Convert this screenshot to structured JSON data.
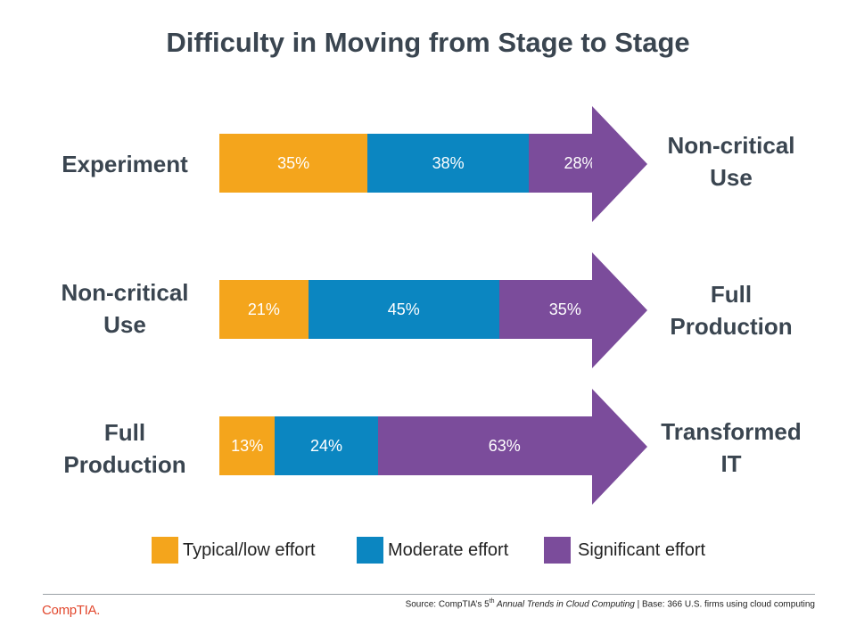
{
  "title": "Difficulty in Moving from Stage to Stage",
  "colors": {
    "low": "#f4a51c",
    "moderate": "#0b86c1",
    "significant": "#7b4c9b",
    "text": "#3a4550",
    "logo": "#e2492f"
  },
  "chart_data": {
    "type": "bar",
    "orientation": "horizontal-stacked",
    "title": "Difficulty in Moving from Stage to Stage",
    "unit": "%",
    "categories": [
      "Experiment",
      "Non-critical Use",
      "Full Production"
    ],
    "targets": [
      "Non-critical Use",
      "Full Production",
      "Transformed IT"
    ],
    "series": [
      {
        "name": "Typical/low effort",
        "values": [
          35,
          21,
          13
        ]
      },
      {
        "name": "Moderate effort",
        "values": [
          38,
          45,
          24
        ]
      },
      {
        "name": "Significant effort",
        "values": [
          28,
          35,
          63
        ]
      }
    ],
    "value_labels": [
      [
        "35%",
        "38%",
        "28%"
      ],
      [
        "21%",
        "45%",
        "35%"
      ],
      [
        "13%",
        "24%",
        "63%"
      ]
    ],
    "legend_position": "bottom"
  },
  "rows": [
    {
      "from_line1": "Experiment",
      "from_line2": "",
      "to_line1": "Non-critical",
      "to_line2": "Use"
    },
    {
      "from_line1": "Non-critical",
      "from_line2": "Use",
      "to_line1": "Full",
      "to_line2": "Production"
    },
    {
      "from_line1": "Full",
      "from_line2": "Production",
      "to_line1": "Transformed",
      "to_line2": "IT"
    }
  ],
  "legend": {
    "low": "Typical/low effort",
    "moderate": "Moderate effort",
    "significant": "Significant effort"
  },
  "footer": {
    "source_prefix": "Source: CompTIA’s 5",
    "source_sup": "th",
    "source_italic": " Annual Trends in Cloud Computing",
    "source_suffix": " | Base: 366 U.S. firms using cloud computing",
    "logo": "CompTIA."
  }
}
